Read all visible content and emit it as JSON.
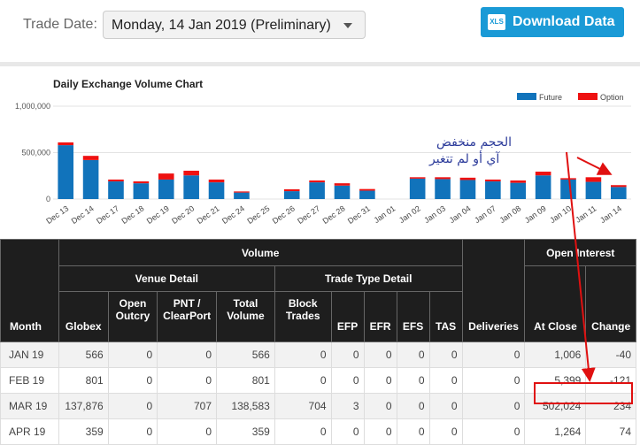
{
  "header": {
    "trade_date_label": "Trade Date:",
    "trade_date_value": "Monday, 14 Jan 2019 (Preliminary)",
    "download_label": "Download Data",
    "xls_icon_text": "XLS"
  },
  "chart_data": {
    "type": "bar",
    "title": "Daily Exchange Volume Chart",
    "legend": [
      {
        "name": "Future",
        "color": "#1173bb"
      },
      {
        "name": "Option",
        "color": "#ee1111"
      }
    ],
    "legend_position": "top-right",
    "categories": [
      "Dec 13",
      "Dec 14",
      "Dec 17",
      "Dec 18",
      "Dec 19",
      "Dec 20",
      "Dec 21",
      "Dec 24",
      "Dec 25",
      "Dec 26",
      "Dec 27",
      "Dec 28",
      "Dec 31",
      "Jan 01",
      "Jan 02",
      "Jan 03",
      "Jan 04",
      "Jan 07",
      "Jan 08",
      "Jan 09",
      "Jan 10",
      "Jan 11",
      "Jan 14"
    ],
    "series": [
      {
        "name": "Future",
        "values": [
          580000,
          420000,
          190000,
          170000,
          210000,
          255000,
          180000,
          70000,
          0,
          85000,
          180000,
          145000,
          90000,
          0,
          220000,
          215000,
          205000,
          190000,
          175000,
          255000,
          210000,
          185000,
          130000
        ]
      },
      {
        "name": "Option",
        "values": [
          30000,
          45000,
          20000,
          20000,
          65000,
          50000,
          30000,
          12000,
          0,
          20000,
          20000,
          25000,
          18000,
          0,
          15000,
          20000,
          25000,
          20000,
          25000,
          40000,
          15000,
          50000,
          20000
        ]
      }
    ],
    "yticks": [
      "1,000,000",
      "500,000",
      "0"
    ],
    "ylim": [
      0,
      1000000
    ],
    "stacked": true,
    "grid": true
  },
  "annotation": {
    "line1": "الحجم منخفض",
    "line2": "آي أو لم تتغير"
  },
  "table": {
    "h_volume": "Volume",
    "h_open_interest": "Open Interest",
    "h_venue_detail": "Venue Detail",
    "h_trade_type_detail": "Trade Type Detail",
    "h_month": "Month",
    "h_globex": "Globex",
    "h_open_outcry_1": "Open",
    "h_open_outcry_2": "Outcry",
    "h_pnt_1": "PNT /",
    "h_pnt_2": "ClearPort",
    "h_total_1": "Total",
    "h_total_2": "Volume",
    "h_block_1": "Block",
    "h_block_2": "Trades",
    "h_efp": "EFP",
    "h_efr": "EFR",
    "h_efs": "EFS",
    "h_tas": "TAS",
    "h_deliveries": "Deliveries",
    "h_at_close": "At Close",
    "h_change": "Change",
    "rows": [
      {
        "month": "JAN 19",
        "globex": "566",
        "open_outcry": "0",
        "pnt": "0",
        "total": "566",
        "block": "0",
        "efp": "0",
        "efr": "0",
        "efs": "0",
        "tas": "0",
        "deliveries": "0",
        "at_close": "1,006",
        "change": "-40"
      },
      {
        "month": "FEB 19",
        "globex": "801",
        "open_outcry": "0",
        "pnt": "0",
        "total": "801",
        "block": "0",
        "efp": "0",
        "efr": "0",
        "efs": "0",
        "tas": "0",
        "deliveries": "0",
        "at_close": "5,399",
        "change": "-121"
      },
      {
        "month": "MAR 19",
        "globex": "137,876",
        "open_outcry": "0",
        "pnt": "707",
        "total": "138,583",
        "block": "704",
        "efp": "3",
        "efr": "0",
        "efs": "0",
        "tas": "0",
        "deliveries": "0",
        "at_close": "502,024",
        "change": "234"
      },
      {
        "month": "APR 19",
        "globex": "359",
        "open_outcry": "0",
        "pnt": "0",
        "total": "359",
        "block": "0",
        "efp": "0",
        "efr": "0",
        "efs": "0",
        "tas": "0",
        "deliveries": "0",
        "at_close": "1,264",
        "change": "74"
      }
    ]
  }
}
